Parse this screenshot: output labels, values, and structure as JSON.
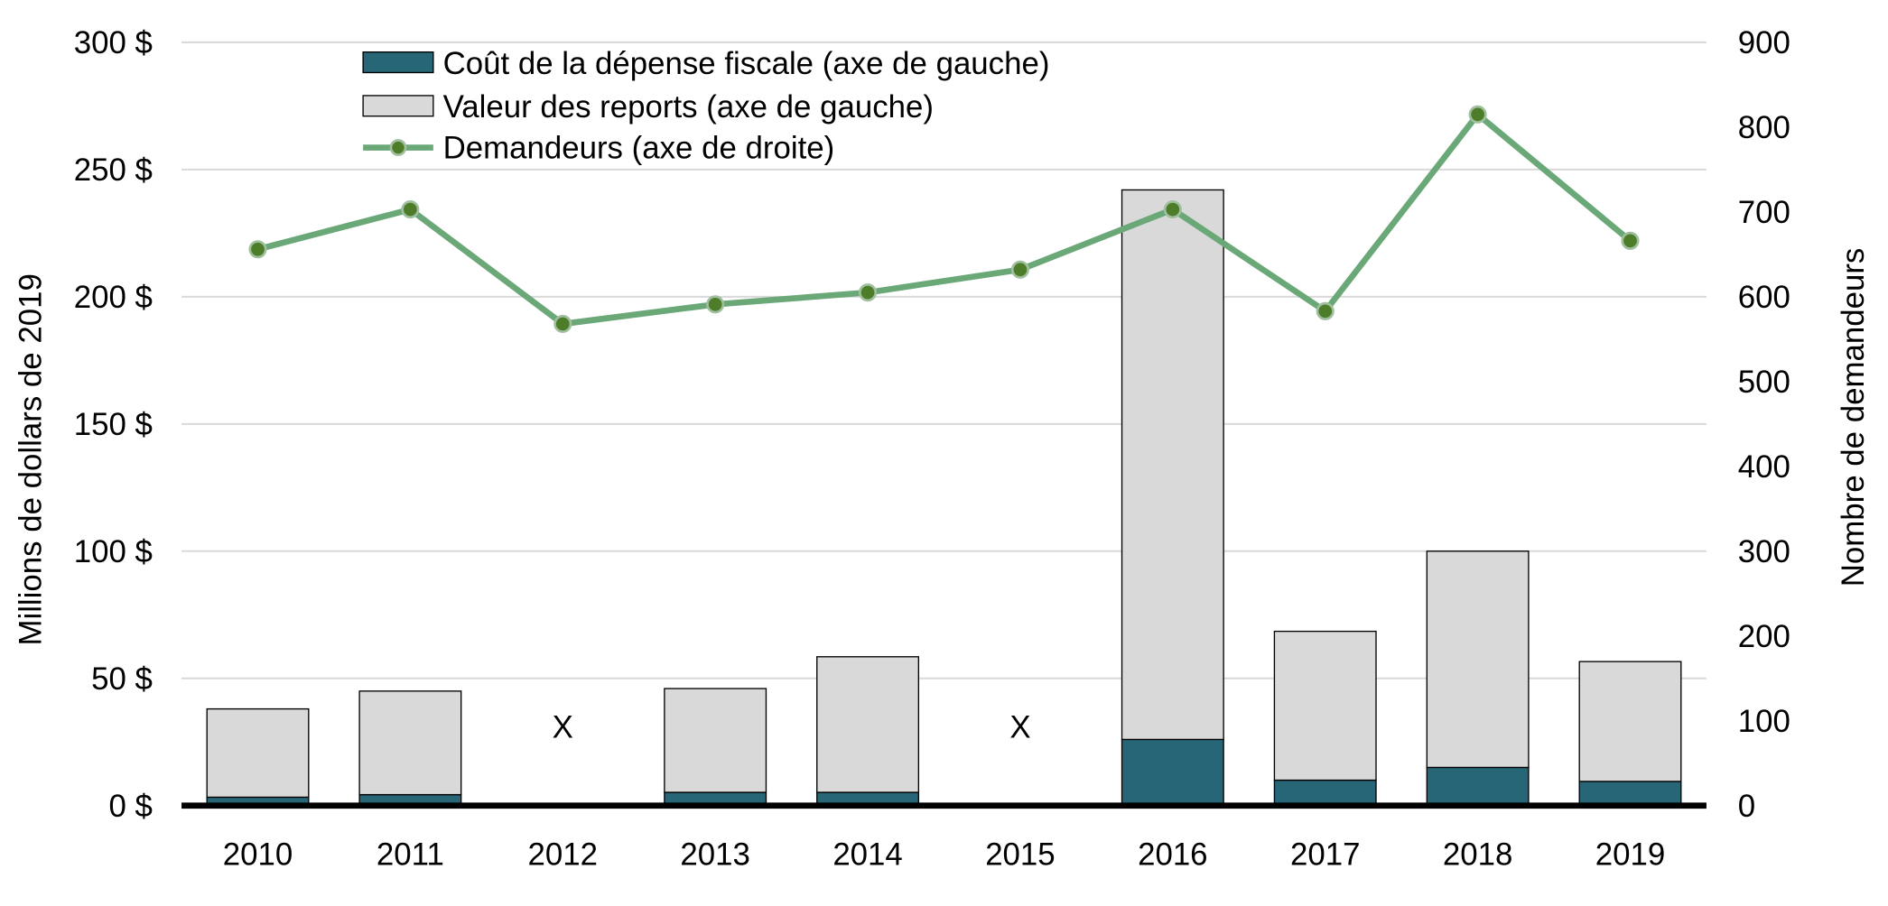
{
  "chart_data": {
    "type": "bar",
    "stacked": true,
    "categories": [
      "2010",
      "2011",
      "2012",
      "2013",
      "2014",
      "2015",
      "2016",
      "2017",
      "2018",
      "2019"
    ],
    "series": [
      {
        "name": "Coût de la dépense fiscale (axe de gauche)",
        "type": "bar",
        "axis": "left",
        "color": "#266677",
        "values": [
          3.3,
          4.3,
          null,
          5.2,
          5.2,
          null,
          26,
          10,
          15,
          9.5
        ]
      },
      {
        "name": "Valeur des reports (axe de gauche)",
        "type": "bar",
        "axis": "left",
        "color": "#d9d9d9",
        "values": [
          34.7,
          40.7,
          null,
          40.8,
          53.3,
          null,
          216,
          58.5,
          85,
          47.1
        ]
      },
      {
        "name": "Demandeurs (axe de droite)",
        "type": "line",
        "axis": "right",
        "color": "#6aa878",
        "marker_color": "#4e7d2a",
        "values": [
          656,
          703,
          568,
          591,
          605,
          632,
          703,
          583,
          815,
          666
        ]
      }
    ],
    "suppressed_marker": "X",
    "suppressed_categories": [
      "2012",
      "2015"
    ],
    "ylabel": "Millions de dollars de 2019",
    "y2label": "Nombre de demandeurs",
    "ylim": [
      0,
      300
    ],
    "y2lim": [
      0,
      900
    ],
    "yticks": [
      "0 $",
      "50 $",
      "100 $",
      "150 $",
      "200 $",
      "250 $",
      "300 $"
    ],
    "y2ticks": [
      "0",
      "100",
      "200",
      "300",
      "400",
      "500",
      "600",
      "700",
      "800",
      "900"
    ],
    "grid": true,
    "legend": "top-left"
  }
}
